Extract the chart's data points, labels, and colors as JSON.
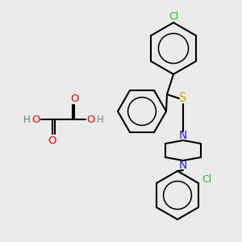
{
  "bg_color": "#ebebeb",
  "atom_colors": {
    "C": "#000000",
    "N": "#2222dd",
    "O": "#dd0000",
    "S": "#ccaa00",
    "Cl": "#22bb22",
    "H": "#558888"
  },
  "line_color": "#000000",
  "line_width": 1.5,
  "font_size": 8.5
}
